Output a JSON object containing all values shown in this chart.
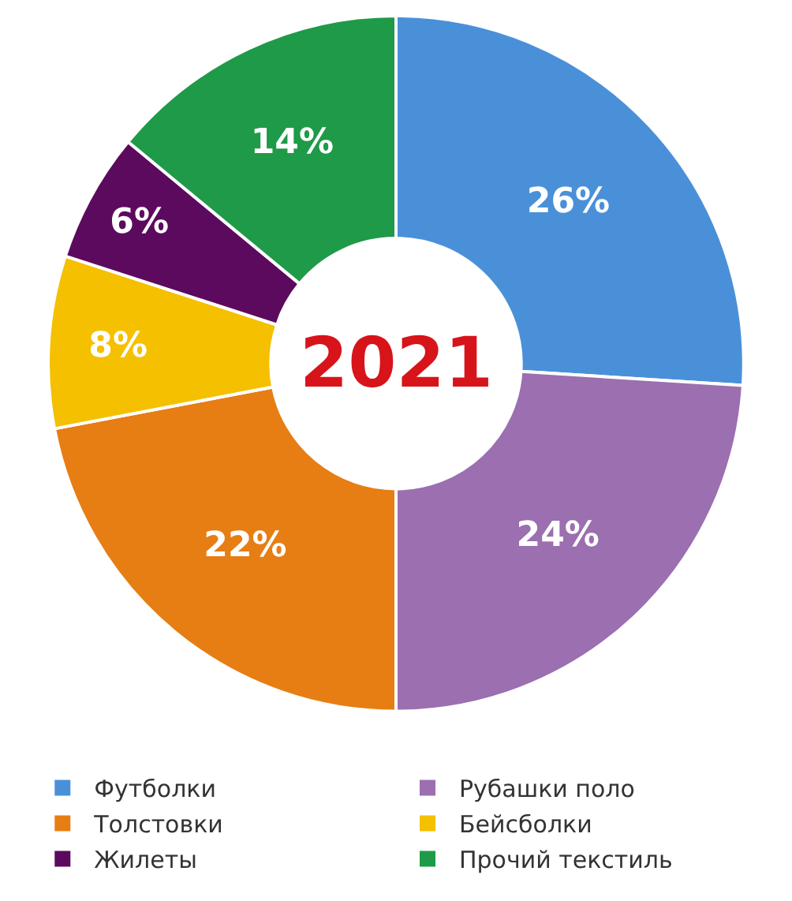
{
  "chart_data": {
    "type": "donut",
    "title": "2021",
    "categories": [
      "Футболки",
      "Рубашки поло",
      "Толстовки",
      "Бейсболки",
      "Жилеты",
      "Прочий текстиль"
    ],
    "values": [
      26,
      24,
      22,
      8,
      6,
      14
    ],
    "colors": [
      "#4a90d9",
      "#9b6fb0",
      "#e67e14",
      "#f5c000",
      "#5c0a5e",
      "#1f9a48"
    ],
    "value_labels": [
      "26%",
      "24%",
      "22%",
      "8%",
      "6%",
      "14%"
    ],
    "legend": "bottom"
  }
}
